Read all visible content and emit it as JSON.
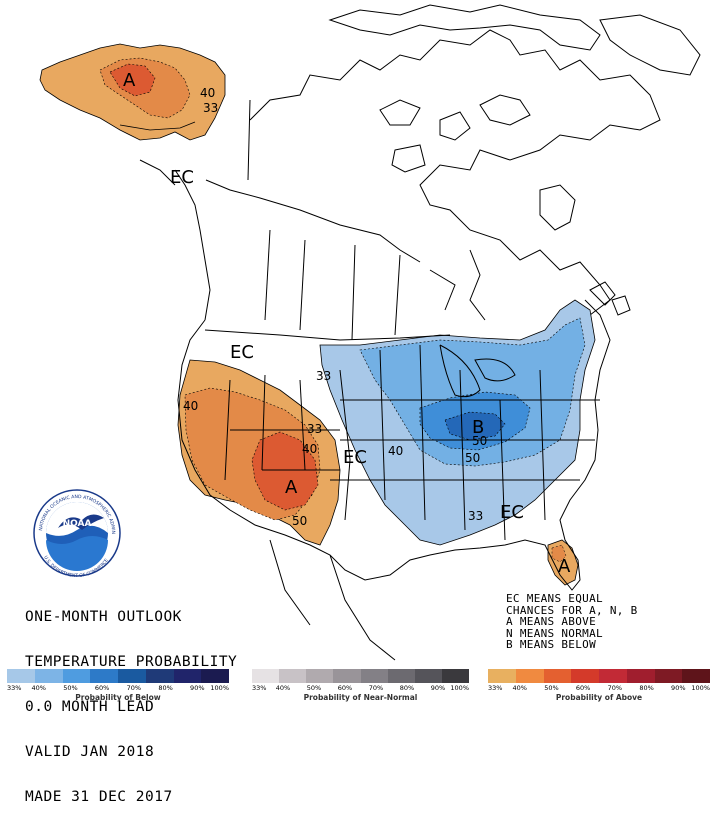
{
  "outlook": {
    "line1": "ONE-MONTH OUTLOOK",
    "line2": "TEMPERATURE PROBABILITY",
    "line3": "0.0 MONTH LEAD",
    "line4": "VALID JAN 2018",
    "line5": "MADE 31 DEC 2017"
  },
  "key": {
    "line1": "EC MEANS EQUAL",
    "line2": "CHANCES FOR A, N, B",
    "line3": "A MEANS ABOVE",
    "line4": "N MEANS NORMAL",
    "line5": "B MEANS BELOW"
  },
  "logo": {
    "name": "NOAA",
    "ring_text": "NATIONAL OCEANIC AND ATMOSPHERIC ADMINISTRATION",
    "ring_bottom": "U.S. DEPARTMENT OF COMMERCE"
  },
  "map_labels": {
    "alaska_above": "A",
    "alaska_40": "40",
    "alaska_33": "33",
    "ec_northwest": "EC",
    "ec_north": "EC",
    "ec_central": "EC",
    "ec_southeast": "EC",
    "west_40": "40",
    "west_33": "33",
    "southwest_40": "40",
    "southwest_above": "A",
    "southwest_50": "50",
    "plains_33": "33",
    "east_40": "40",
    "east_below": "B",
    "east_50": "50",
    "east_50b": "50",
    "southeast_33": "33",
    "florida_above": "A"
  },
  "legends": [
    {
      "title": "Probability of Below",
      "colors": [
        "#a6c8e8",
        "#7db4e6",
        "#4f9ce0",
        "#2d7ac8",
        "#1a5aa0",
        "#1f3a78",
        "#20246a",
        "#1b1b50"
      ],
      "ticks": [
        "33%",
        "40%",
        "50%",
        "60%",
        "70%",
        "80%",
        "90%",
        "100%"
      ]
    },
    {
      "title": "Probability of Near-Normal",
      "colors": [
        "#e6e2e4",
        "#c8c2c6",
        "#b0aaae",
        "#999499",
        "#838086",
        "#6c6a70",
        "#55545a",
        "#3a393d"
      ],
      "ticks": [
        "33%",
        "40%",
        "50%",
        "60%",
        "70%",
        "80%",
        "90%",
        "100%"
      ]
    },
    {
      "title": "Probability of Above",
      "colors": [
        "#e8b060",
        "#f08a40",
        "#e46030",
        "#d43a2a",
        "#c22a36",
        "#a01e2e",
        "#7e1a24",
        "#5e141a"
      ],
      "ticks": [
        "33%",
        "40%",
        "50%",
        "60%",
        "70%",
        "80%",
        "90%",
        "100%"
      ]
    }
  ],
  "colors": {
    "above_33": "#e8a860",
    "above_40": "#e38a48",
    "above_50": "#dc5a32",
    "below_33": "#a8c8e8",
    "below_40": "#73b0e4",
    "below_50": "#3f8ed8",
    "below_60": "#2468b8"
  }
}
